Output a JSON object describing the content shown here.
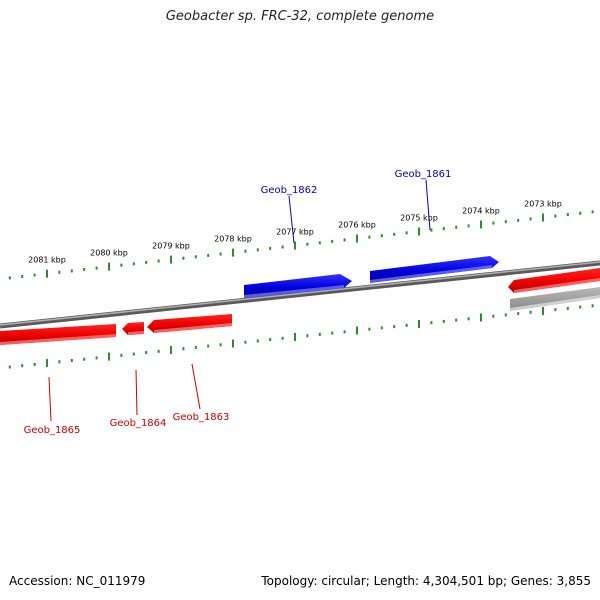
{
  "title": "Geobacter sp. FRC-32, complete genome",
  "footer": {
    "accession": "Accession: NC_011979",
    "topology": "Topology: circular; Length: 4,304,501 bp; Genes: 3,855"
  },
  "colors": {
    "forward_gene": "#0000dd",
    "reverse_gene": "#ee0000",
    "backbone": "#7a7a7a",
    "tick": "#2e8b2e",
    "label_forward": "#0000bb",
    "label_reverse": "#cc0000"
  },
  "ticks": [
    {
      "label": "2073 kbp",
      "kbp": 2073
    },
    {
      "label": "2074 kbp",
      "kbp": 2074
    },
    {
      "label": "2075 kbp",
      "kbp": 2075
    },
    {
      "label": "2076 kbp",
      "kbp": 2076
    },
    {
      "label": "2077 kbp",
      "kbp": 2077
    },
    {
      "label": "2078 kbp",
      "kbp": 2078
    },
    {
      "label": "2079 kbp",
      "kbp": 2079
    },
    {
      "label": "2080 kbp",
      "kbp": 2080
    },
    {
      "label": "2081 kbp",
      "kbp": 2081
    }
  ],
  "genes": [
    {
      "name": "Geob_1861",
      "strand": "forward",
      "labeled": true
    },
    {
      "name": "Geob_1862",
      "strand": "forward",
      "labeled": true
    },
    {
      "name": "Geob_1863",
      "strand": "reverse",
      "labeled": true
    },
    {
      "name": "Geob_1864",
      "strand": "reverse",
      "labeled": true
    },
    {
      "name": "Geob_1865",
      "strand": "reverse",
      "labeled": true
    },
    {
      "name": "",
      "strand": "reverse",
      "labeled": false
    },
    {
      "name": "",
      "strand": "reverse",
      "labeled": false,
      "shade": "grey"
    }
  ]
}
